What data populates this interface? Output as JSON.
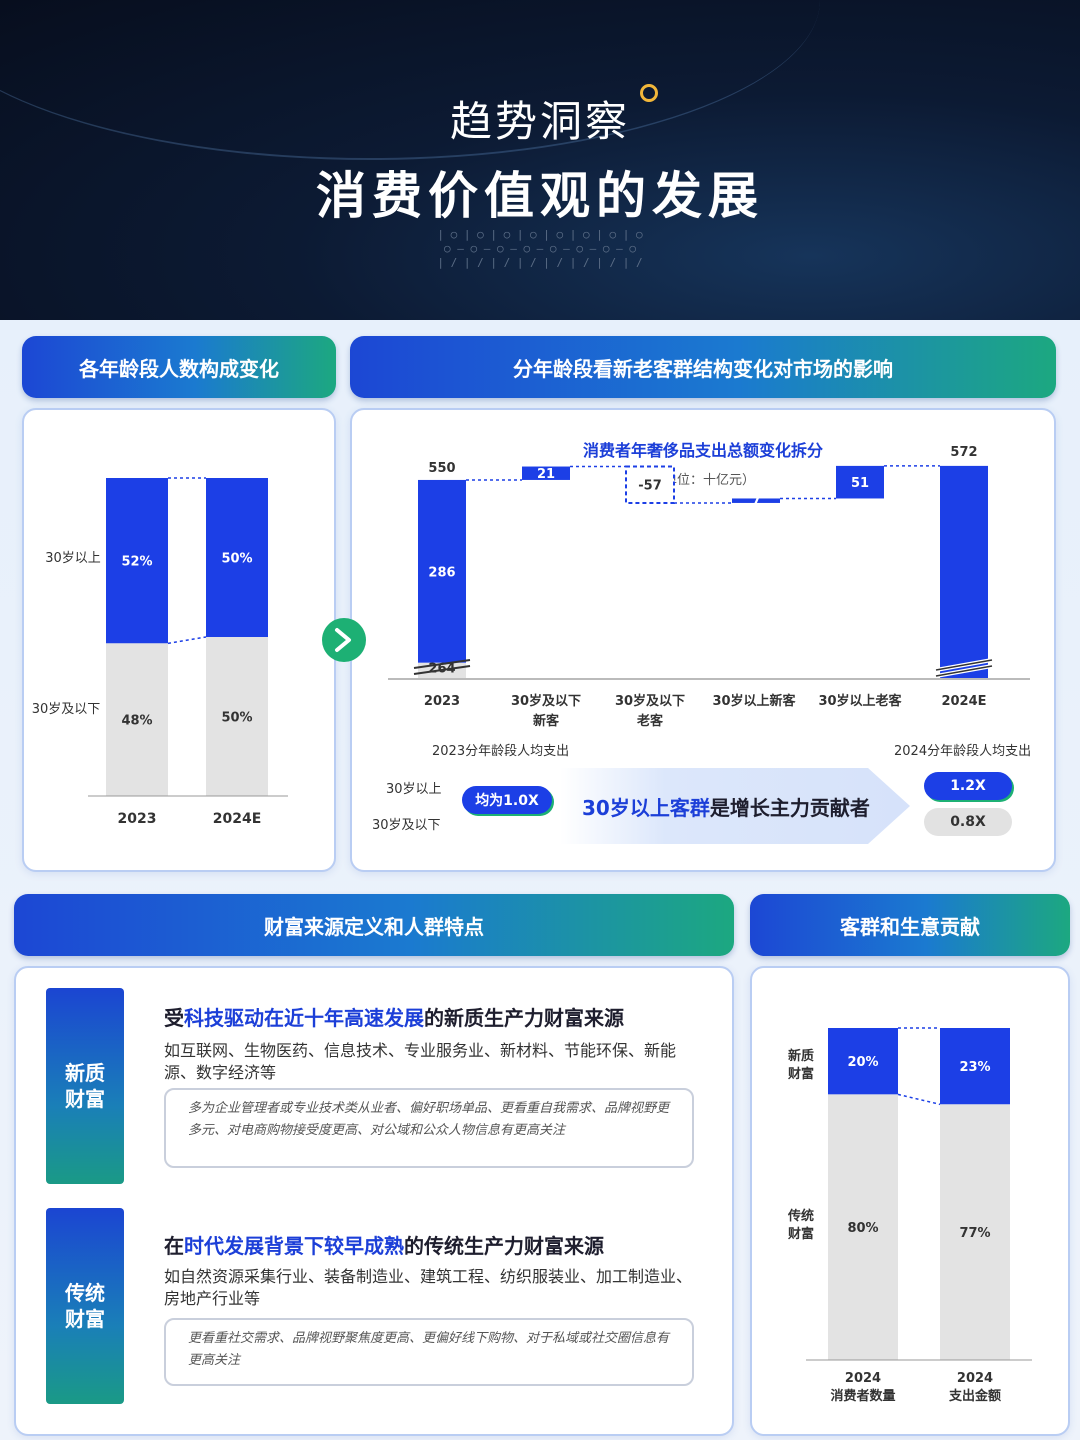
{
  "hero": {
    "title": "趋势洞察",
    "subtitle": "消费价值观的发展"
  },
  "headers": {
    "age_composition": "各年龄段人数构成变化",
    "market_impact": "分年龄段看新老客群结构变化对市场的影响",
    "wealth_source": "财富来源定义和人群特点",
    "contribution": "客群和生意贡献"
  },
  "chart_data": [
    {
      "type": "bar",
      "stacked": true,
      "percent": true,
      "categories": [
        "2023",
        "2024E"
      ],
      "series": [
        {
          "name": "30岁以上",
          "values": [
            52,
            50
          ],
          "color": "#1c3fe6"
        },
        {
          "name": "30岁及以下",
          "values": [
            48,
            50
          ],
          "color": "#e3e3e3"
        }
      ],
      "value_labels": [
        [
          "52%",
          "50%"
        ],
        [
          "48%",
          "50%"
        ]
      ]
    },
    {
      "type": "bar",
      "subtype": "waterfall",
      "title": "消费者年奢侈品支出总额变化拆分",
      "subtitle": "（单位：十亿元）",
      "categories": [
        "2023",
        "30岁及以下新客",
        "30岁及以下老客",
        "30岁以上新客",
        "30岁以上老客",
        "2024E"
      ],
      "category_lines": [
        [
          "2023"
        ],
        [
          "30岁及以下",
          "新客"
        ],
        [
          "30岁及以下",
          "老客"
        ],
        [
          "30岁以上新客"
        ],
        [
          "30岁以上老客"
        ],
        [
          "2024E"
        ]
      ],
      "start": {
        "total": 550,
        "segments": [
          {
            "label": "30岁及以下",
            "value": 264
          },
          {
            "label": "30岁以上",
            "value": 286
          }
        ]
      },
      "steps": [
        21,
        -57,
        7,
        51
      ],
      "end_total": 572,
      "ylim": [
        240,
        600
      ],
      "axis_break": true
    },
    {
      "type": "bar",
      "stacked": true,
      "percent": true,
      "categories": [
        "2024 消费者数量",
        "2024 支出金额"
      ],
      "category_lines": [
        [
          "2024",
          "消费者数量"
        ],
        [
          "2024",
          "支出金额"
        ]
      ],
      "series": [
        {
          "name": "新质财富",
          "values": [
            20,
            23
          ],
          "color": "#1c3fe6"
        },
        {
          "name": "传统财富",
          "values": [
            80,
            77
          ],
          "color": "#e3e3e3"
        }
      ],
      "series_label_lines": [
        [
          "新质",
          "财富"
        ],
        [
          "传统",
          "财富"
        ]
      ],
      "value_labels": [
        [
          "20%",
          "23%"
        ],
        [
          "80%",
          "77%"
        ]
      ]
    }
  ],
  "spend_compare": {
    "left_caption": "2023分年龄段人均支出",
    "right_caption": "2024分年龄段人均支出",
    "row_labels": [
      "30岁以上",
      "30岁及以下"
    ],
    "pill_2023": "均为1.0X",
    "pill_2024_over30": "1.2X",
    "pill_2024_under30": "0.8X",
    "banner_hl": "30岁以上客群",
    "banner_rest": "是增长主力贡献者"
  },
  "wealth": {
    "new": {
      "tag_lines": [
        "新质",
        "财富"
      ],
      "title_pre": "受",
      "title_hl": "科技驱动在近十年高速发展",
      "title_post": "的新质生产力财富来源",
      "desc": "如互联网、生物医药、信息技术、专业服务业、新材料、节能环保、新能源、数字经济等",
      "note": "多为企业管理者或专业技术类从业者、偏好职场单品、更看重自我需求、品牌视野更多元、对电商购物接受度更高、对公域和公众人物信息有更高关注"
    },
    "traditional": {
      "tag_lines": [
        "传统",
        "财富"
      ],
      "title_pre": "在",
      "title_hl": "时代发展背景下较早成熟",
      "title_post": "的传统生产力财富来源",
      "desc": "如自然资源采集行业、装备制造业、建筑工程、纺织服装业、加工制造业、房地产行业等",
      "note": "更看重社交需求、品牌视野聚焦度更高、更偏好线下购物、对于私域或社交圈信息有更高关注"
    }
  },
  "colors": {
    "blue": "#1c3fe6",
    "grey": "#e3e3e3",
    "accent": "#1c3fd8",
    "arrow": "#1db074"
  }
}
